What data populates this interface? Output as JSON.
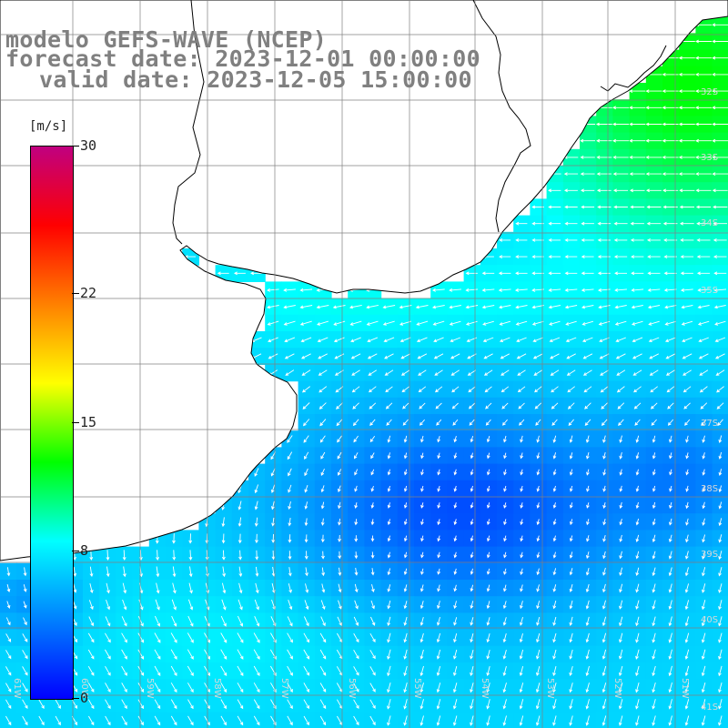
{
  "title": {
    "line1": "modelo GEFS-WAVE (NCEP)",
    "line2": "forecast date: 2023-12-01 00:00:00",
    "line3": "valid date: 2023-12-05 15:00:00"
  },
  "colorbar": {
    "units": "[m/s]",
    "min": 0,
    "max": 30,
    "ticks": [
      {
        "label": "30",
        "value": 30
      },
      {
        "label": "22",
        "value": 22
      },
      {
        "label": "15",
        "value": 15
      },
      {
        "label": "8",
        "value": 8
      },
      {
        "label": "0",
        "value": 0
      }
    ],
    "colors": [
      "#0000ff",
      "#0080ff",
      "#00ffff",
      "#00ff00",
      "#ffff00",
      "#ff8000",
      "#ff0000",
      "#c00080"
    ]
  },
  "map": {
    "lat_labels": [
      "32S",
      "33S",
      "34S",
      "35S",
      "37S",
      "38S",
      "39S",
      "40S",
      "41S"
    ],
    "lon_labels": [
      "61W",
      "60W",
      "59W",
      "58W",
      "57W",
      "56W",
      "55W",
      "54W",
      "53W",
      "52W",
      "51W"
    ],
    "colors": {
      "land": "#ffffff",
      "coast": "#000000",
      "grid": "#808080",
      "arrows": "#ffffff"
    }
  }
}
